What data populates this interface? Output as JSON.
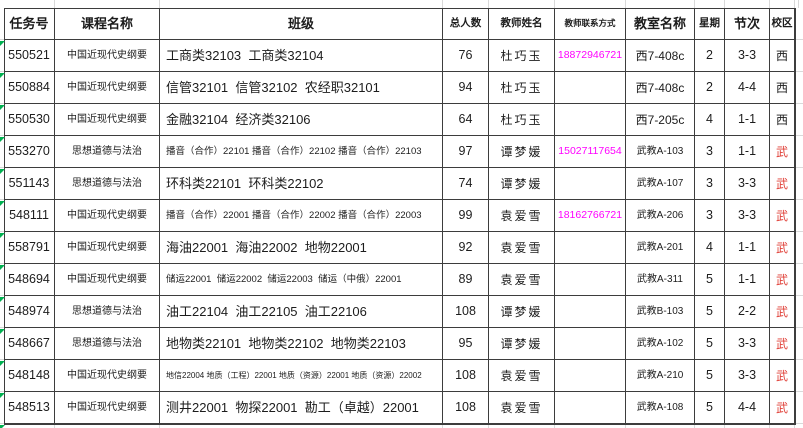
{
  "app": {
    "description": "spreadsheet course schedule table"
  },
  "colors": {
    "phone": "#FF00FF",
    "campus_red": "#E04038",
    "campus_black": "#1c1c1c",
    "grid_dark": "#3d3d3d",
    "grid_light": "#d9d9d9",
    "marker_green": "#00B050",
    "text": "#1c1c1c",
    "background": "#ffffff"
  },
  "table": {
    "columns": [
      {
        "key": "task_id",
        "label": "任务号",
        "hsize": "md"
      },
      {
        "key": "course",
        "label": "课程名称",
        "hsize": "md"
      },
      {
        "key": "classes",
        "label": "班级",
        "hsize": "md"
      },
      {
        "key": "students",
        "label": "总人数",
        "hsize": "sm"
      },
      {
        "key": "teacher",
        "label": "教师姓名",
        "hsize": "sm"
      },
      {
        "key": "phone",
        "label": "教师联系方式",
        "hsize": "xs"
      },
      {
        "key": "classroom",
        "label": "教室名称",
        "hsize": "md"
      },
      {
        "key": "weekday",
        "label": "星期",
        "hsize": "sm"
      },
      {
        "key": "period",
        "label": "节次",
        "hsize": "md"
      },
      {
        "key": "campus",
        "label": "校区",
        "hsize": "sm"
      }
    ],
    "rows": [
      {
        "task_id": "550521",
        "course": "中国近现代史纲要",
        "classes": "工商类32103  工商类32104",
        "classes_size": "md",
        "students": "76",
        "teacher": "杜巧玉",
        "phone": "18872946721",
        "classroom": "西7-408c",
        "classroom_size": "md",
        "weekday": "2",
        "period": "3-3",
        "campus": "西",
        "campus_color": "black"
      },
      {
        "task_id": "550884",
        "course": "中国近现代史纲要",
        "classes": "信管32101  信管32102  农经职32101",
        "classes_size": "md",
        "students": "94",
        "teacher": "杜巧玉",
        "phone": "",
        "classroom": "西7-408c",
        "classroom_size": "md",
        "weekday": "2",
        "period": "4-4",
        "campus": "西",
        "campus_color": "black"
      },
      {
        "task_id": "550530",
        "course": "中国近现代史纲要",
        "classes": "金融32104  经济类32106",
        "classes_size": "md",
        "students": "64",
        "teacher": "杜巧玉",
        "phone": "",
        "classroom": "西7-205c",
        "classroom_size": "md",
        "weekday": "4",
        "period": "1-1",
        "campus": "西",
        "campus_color": "black"
      },
      {
        "task_id": "553270",
        "course": "思想道德与法治",
        "classes": "播音（合作）22101 播音（合作）22102 播音（合作）22103",
        "classes_size": "sm",
        "students": "97",
        "teacher": "谭梦媛",
        "phone": "15027117654",
        "classroom": "武教A-103",
        "classroom_size": "sm",
        "weekday": "3",
        "period": "1-1",
        "campus": "武",
        "campus_color": "red"
      },
      {
        "task_id": "551143",
        "course": "思想道德与法治",
        "classes": "环科类22101  环科类22102",
        "classes_size": "md",
        "students": "74",
        "teacher": "谭梦媛",
        "phone": "",
        "classroom": "武教A-107",
        "classroom_size": "sm",
        "weekday": "3",
        "period": "3-3",
        "campus": "武",
        "campus_color": "red"
      },
      {
        "task_id": "548111",
        "course": "中国近现代史纲要",
        "classes": "播音（合作）22001 播音（合作）22002 播音（合作）22003",
        "classes_size": "sm",
        "students": "99",
        "teacher": "袁爱雪",
        "phone": "18162766721",
        "classroom": "武教A-206",
        "classroom_size": "sm",
        "weekday": "3",
        "period": "3-3",
        "campus": "武",
        "campus_color": "red"
      },
      {
        "task_id": "558791",
        "course": "中国近现代史纲要",
        "classes": "海油22001  海油22002  地物22001",
        "classes_size": "md",
        "students": "92",
        "teacher": "袁爱雪",
        "phone": "",
        "classroom": "武教A-201",
        "classroom_size": "sm",
        "weekday": "4",
        "period": "1-1",
        "campus": "武",
        "campus_color": "red"
      },
      {
        "task_id": "548694",
        "course": "中国近现代史纲要",
        "classes": "储运22001  储运22002  储运22003  储运（中俄）22001",
        "classes_size": "sm",
        "students": "89",
        "teacher": "袁爱雪",
        "phone": "",
        "classroom": "武教A-311",
        "classroom_size": "sm",
        "weekday": "5",
        "period": "1-1",
        "campus": "武",
        "campus_color": "red"
      },
      {
        "task_id": "548974",
        "course": "思想道德与法治",
        "classes": "油工22104  油工22105  油工22106",
        "classes_size": "md",
        "students": "108",
        "teacher": "谭梦媛",
        "phone": "",
        "classroom": "武教B-103",
        "classroom_size": "sm",
        "weekday": "5",
        "period": "2-2",
        "campus": "武",
        "campus_color": "red"
      },
      {
        "task_id": "548667",
        "course": "思想道德与法治",
        "classes": "地物类22101  地物类22102  地物类22103",
        "classes_size": "md",
        "students": "95",
        "teacher": "谭梦媛",
        "phone": "",
        "classroom": "武教A-102",
        "classroom_size": "sm",
        "weekday": "5",
        "period": "3-3",
        "campus": "武",
        "campus_color": "red"
      },
      {
        "task_id": "548148",
        "course": "中国近现代史纲要",
        "classes": "地信22004 地质（工程）22001 地质（资源）22001 地质（资源）22002",
        "classes_size": "xs",
        "students": "108",
        "teacher": "袁爱雪",
        "phone": "",
        "classroom": "武教A-210",
        "classroom_size": "sm",
        "weekday": "5",
        "period": "3-3",
        "campus": "武",
        "campus_color": "red"
      },
      {
        "task_id": "548513",
        "course": "中国近现代史纲要",
        "classes": "测井22001  物探22001  勘工（卓越）22001",
        "classes_size": "md",
        "students": "108",
        "teacher": "袁爱雪",
        "phone": "",
        "classroom": "武教A-108",
        "classroom_size": "sm",
        "weekday": "5",
        "period": "4-4",
        "campus": "武",
        "campus_color": "red"
      }
    ]
  }
}
